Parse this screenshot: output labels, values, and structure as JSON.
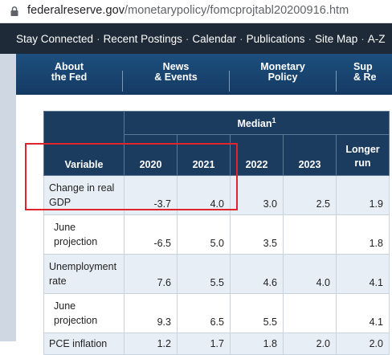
{
  "browser": {
    "domain": "federalreserve.gov",
    "path": "/monetarypolicy/fomcprojtabl20200916.htm"
  },
  "topbar": {
    "items": [
      "Stay Connected",
      "Recent Postings",
      "Calendar",
      "Publications",
      "Site Map",
      "A-Z"
    ]
  },
  "navbar": {
    "items": [
      {
        "line1": "About",
        "line2": "the Fed"
      },
      {
        "line1": "News",
        "line2": "& Events"
      },
      {
        "line1": "Monetary",
        "line2": "Policy"
      },
      {
        "line1": "Sup",
        "line2": "& Re"
      }
    ]
  },
  "table": {
    "group_header": "Median",
    "group_footnote": "1",
    "headers": {
      "variable": "Variable",
      "y2020": "2020",
      "y2021": "2021",
      "y2022": "2022",
      "y2023": "2023",
      "longer_run_1": "Longer",
      "longer_run_2": "run"
    },
    "rows": [
      {
        "label1": "Change in real",
        "label2": "GDP",
        "v2020": "-3.7",
        "v2021": "4.0",
        "v2022": "3.0",
        "v2023": "2.5",
        "lr": "1.9"
      },
      {
        "label1": "June",
        "label2": "projection",
        "v2020": "-6.5",
        "v2021": "5.0",
        "v2022": "3.5",
        "v2023": "",
        "lr": "1.8"
      },
      {
        "label1": "Unemployment",
        "label2": "rate",
        "v2020": "7.6",
        "v2021": "5.5",
        "v2022": "4.6",
        "v2023": "4.0",
        "lr": "4.1"
      },
      {
        "label1": "June",
        "label2": "projection",
        "v2020": "9.3",
        "v2021": "6.5",
        "v2022": "5.5",
        "v2023": "",
        "lr": "4.1"
      },
      {
        "label1": "PCE inflation",
        "label2": "",
        "v2020": "1.2",
        "v2021": "1.7",
        "v2022": "1.8",
        "v2023": "2.0",
        "lr": "2.0"
      }
    ]
  },
  "colors": {
    "highlight": "#e0242c",
    "header_bg": "#1c3c5f",
    "row_shade": "#e8eef5"
  }
}
